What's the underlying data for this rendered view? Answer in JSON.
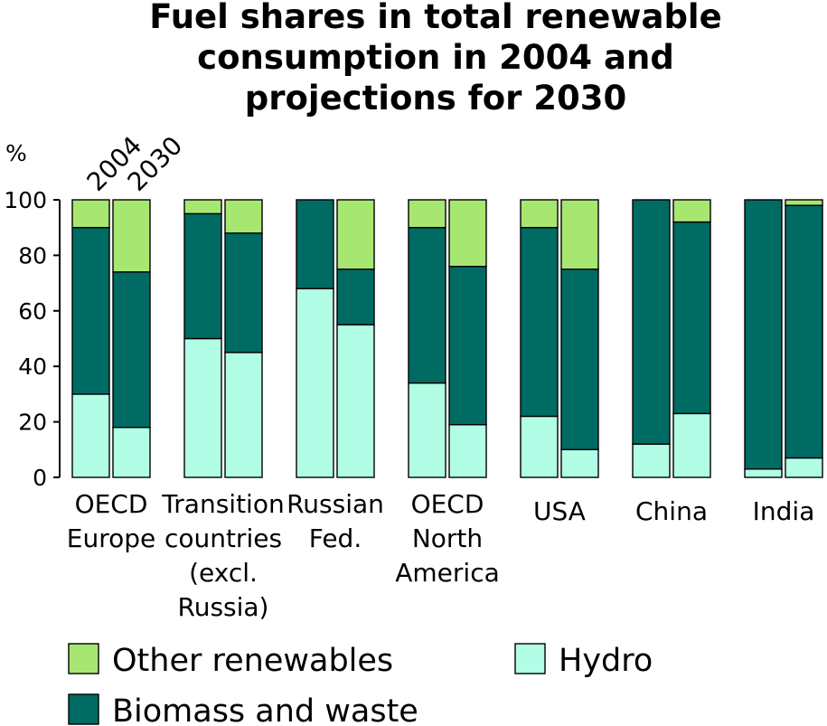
{
  "chart_data": {
    "type": "bar",
    "stacked": true,
    "title": [
      "Fuel shares in total renewable",
      "consumption in 2004 and",
      "projections for 2030"
    ],
    "ylabel": "%",
    "ylim": [
      0,
      100
    ],
    "yticks": [
      0,
      20,
      40,
      60,
      80,
      100
    ],
    "bar_labels": [
      "2004",
      "2030"
    ],
    "categories": [
      [
        "OECD",
        "Europe"
      ],
      [
        "Transition",
        "countries",
        "(excl.",
        "Russia)"
      ],
      [
        "Russian",
        "Fed."
      ],
      [
        "OECD",
        "North",
        "America"
      ],
      [
        "USA"
      ],
      [
        "China"
      ],
      [
        "India"
      ]
    ],
    "series": [
      {
        "name": "Hydro",
        "color": "#b2fde5",
        "values_2004": [
          30,
          50,
          68,
          34,
          22,
          12,
          3
        ],
        "values_2030": [
          18,
          45,
          55,
          19,
          10,
          23,
          7
        ]
      },
      {
        "name": "Biomass and waste",
        "color": "#006b63",
        "values_2004": [
          60,
          45,
          32,
          56,
          68,
          88,
          97
        ],
        "values_2030": [
          56,
          43,
          20,
          57,
          65,
          69,
          91
        ]
      },
      {
        "name": "Other renewables",
        "color": "#a8e672",
        "values_2004": [
          10,
          5,
          0,
          10,
          10,
          0,
          0
        ],
        "values_2030": [
          26,
          12,
          25,
          24,
          25,
          8,
          2
        ]
      }
    ],
    "legend": {
      "placement": "bottom",
      "items": [
        "Other renewables",
        "Hydro",
        "Biomass and waste"
      ]
    },
    "grid": false
  }
}
